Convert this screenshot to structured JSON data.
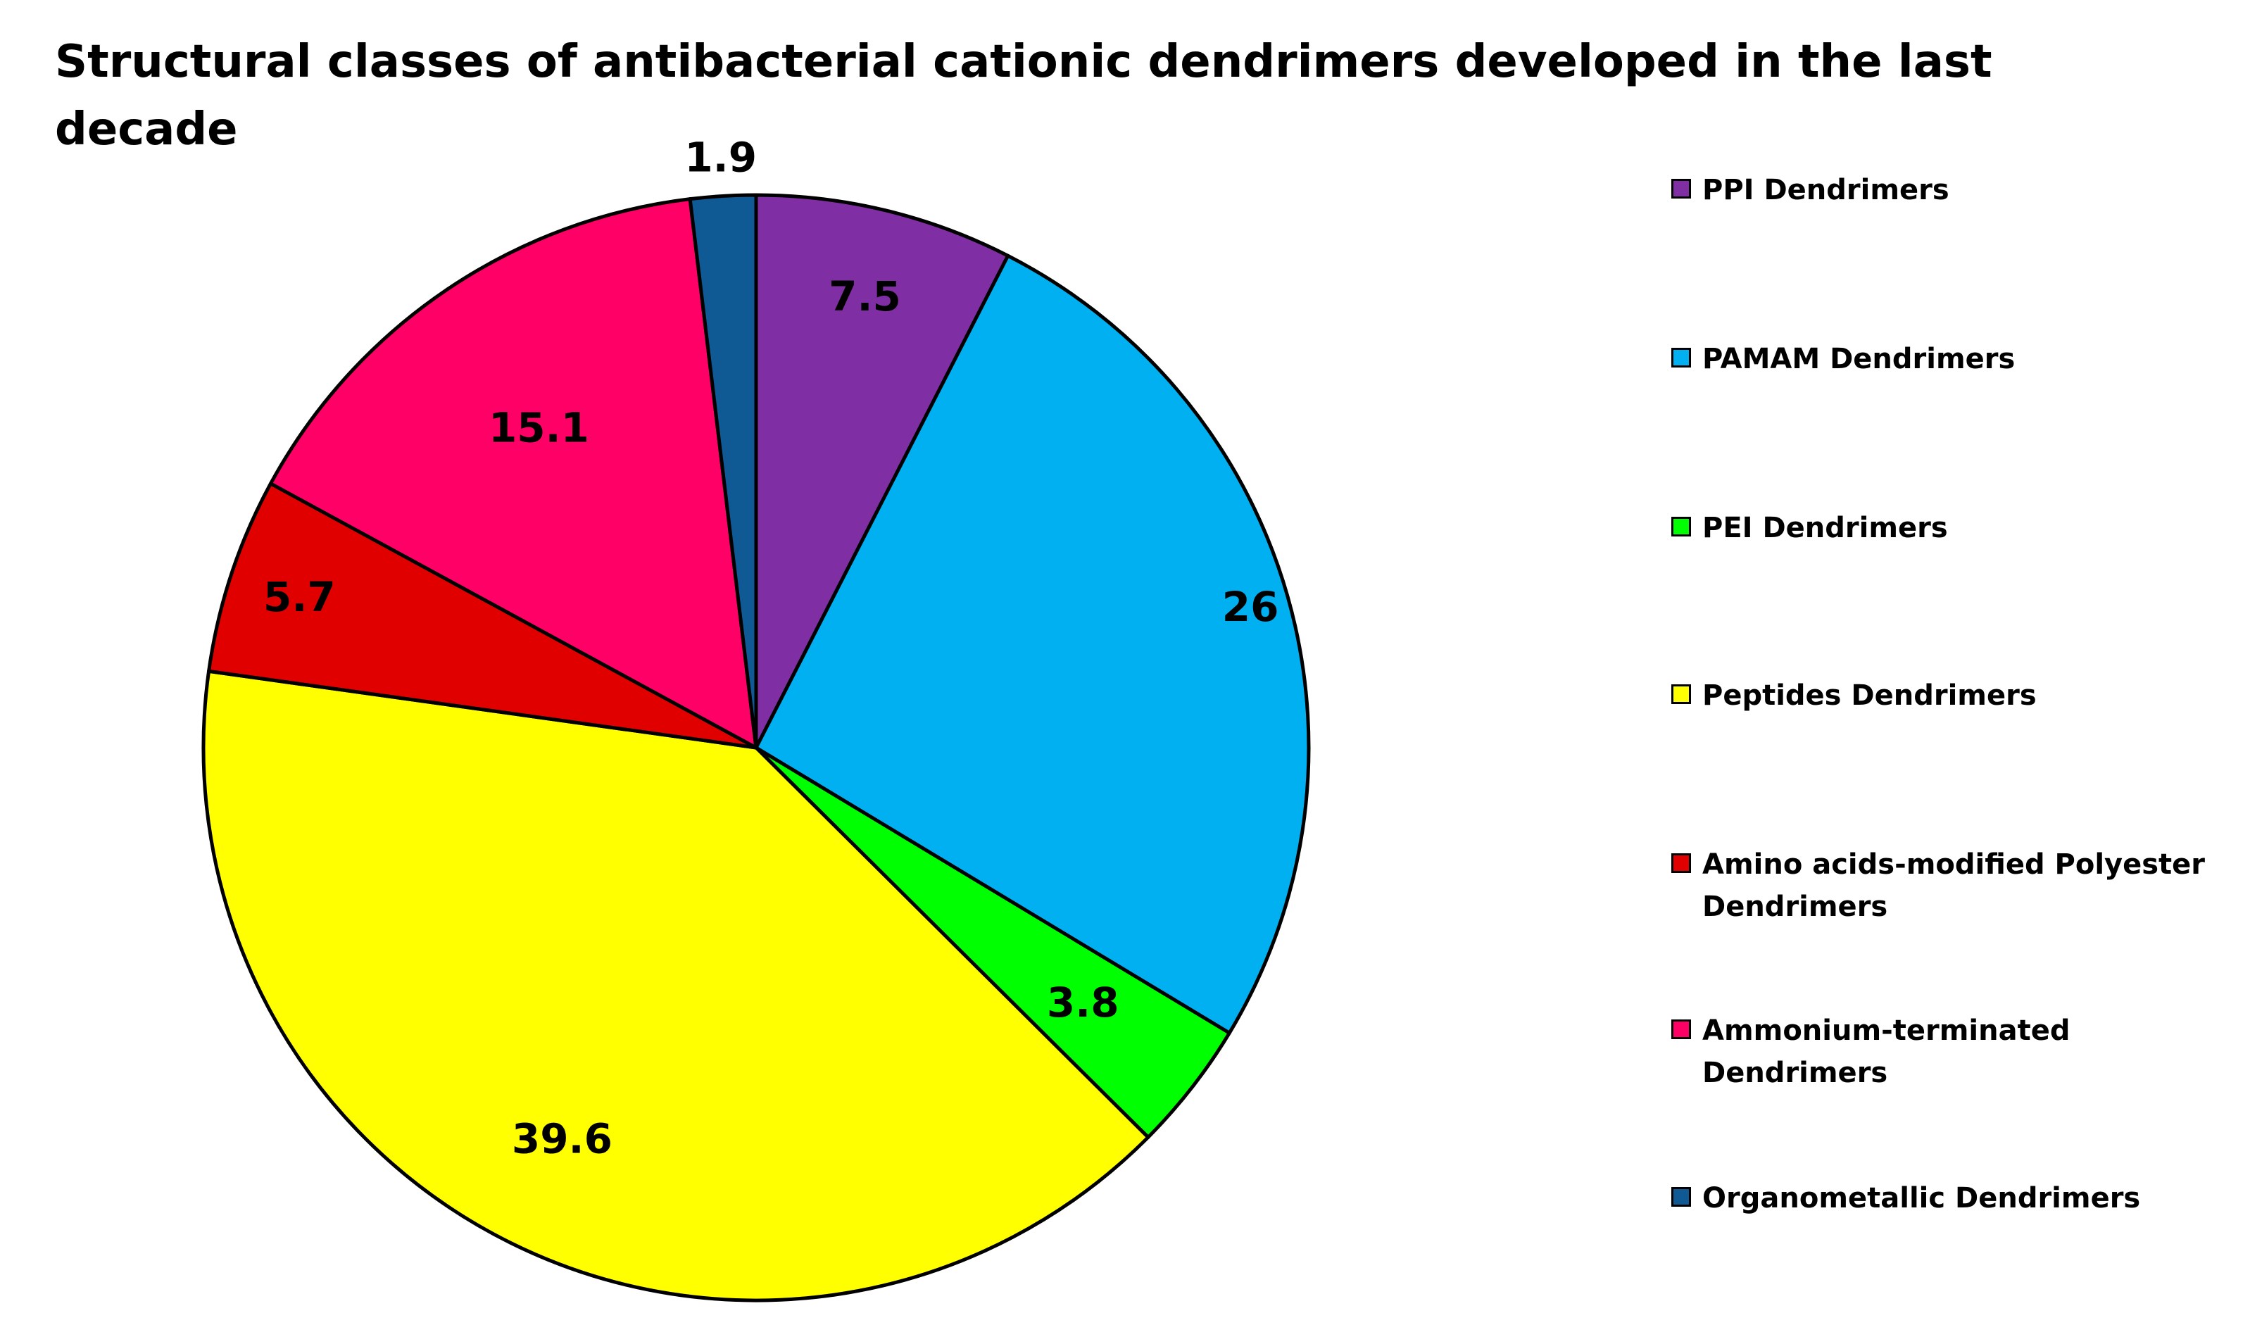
{
  "chart_data": {
    "type": "pie",
    "title": "Structural classes of antibacterial cationic dendrimers developed in the last decade",
    "slices": [
      {
        "label": "PPI Dendrimers",
        "value": 7.5,
        "value_label": "7.5",
        "color": "#7F2FA3"
      },
      {
        "label": "PAMAM Dendrimers",
        "value": 26,
        "value_label": "26",
        "color": "#00B0F0"
      },
      {
        "label": "PEI Dendrimers",
        "value": 3.8,
        "value_label": "3.8",
        "color": "#00FF00"
      },
      {
        "label": "Peptides Dendrimers",
        "value": 39.6,
        "value_label": "39.6",
        "color": "#FFFF00"
      },
      {
        "label": "Amino acids-modified Polyester Dendrimers",
        "value": 5.7,
        "value_label": "5.7",
        "color": "#E00000"
      },
      {
        "label": "Ammonium-terminated Dendrimers",
        "value": 15.1,
        "value_label": "15.1",
        "color": "#FF0066"
      },
      {
        "label": "Organometallic Dendrimers",
        "value": 1.9,
        "value_label": "1.9",
        "color": "#0F5A94"
      }
    ],
    "start_angle_deg": 0,
    "direction": "clockwise",
    "legend_position": "right"
  }
}
